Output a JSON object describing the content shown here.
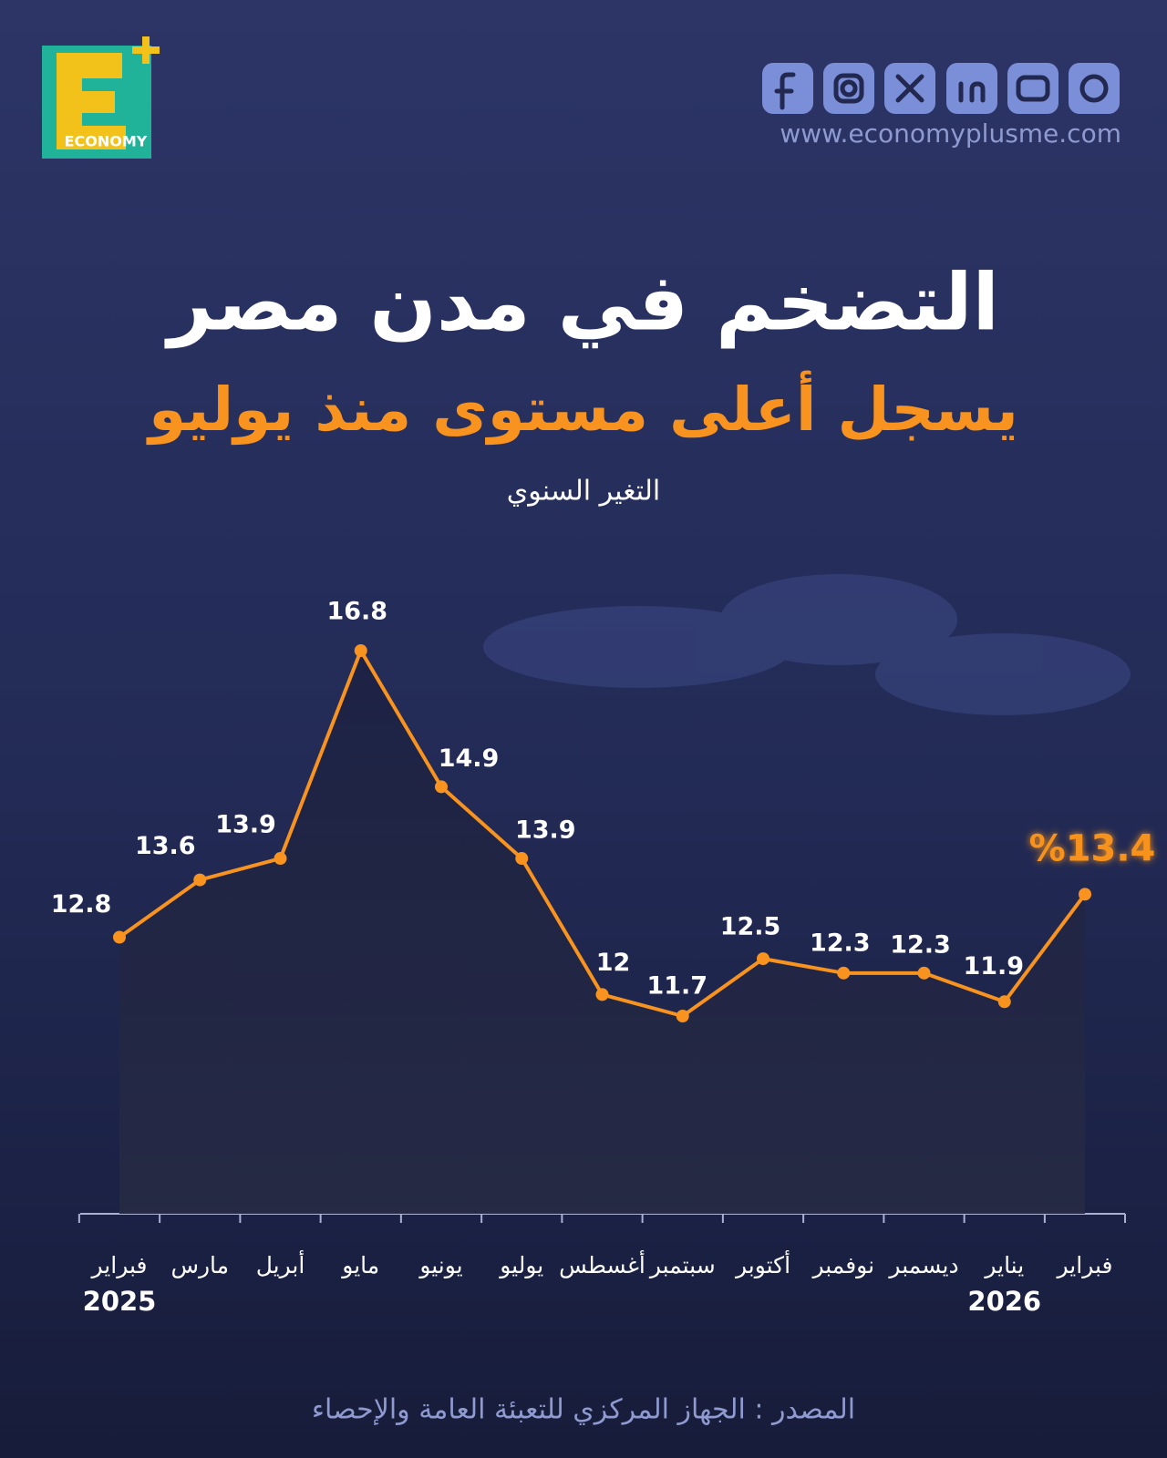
{
  "header": {
    "logo_text": "ECONOMY",
    "website": "www.economyplusme.com"
  },
  "chart_data": {
    "type": "line",
    "title": "التضخم في مدن مصر",
    "subtitle": "يسجل أعلى مستوى منذ يوليو",
    "y_label": "التغير السنوي",
    "categories": [
      "فبراير",
      "مارس",
      "أبريل",
      "مايو",
      "يونيو",
      "يوليو",
      "أغسطس",
      "سبتمبر",
      "أكتوبر",
      "نوفمبر",
      "ديسمبر",
      "يناير",
      "فبراير"
    ],
    "category_years": [
      "2025",
      null,
      null,
      null,
      null,
      null,
      null,
      null,
      null,
      null,
      null,
      "2026",
      null
    ],
    "series": [
      {
        "name": "التغير السنوي",
        "color": "#f7931e",
        "values": [
          12.8,
          13.6,
          13.9,
          16.8,
          14.9,
          13.9,
          12,
          11.7,
          12.5,
          12.3,
          12.3,
          11.9,
          13.4
        ],
        "value_labels": [
          "12.8",
          "13.6",
          "13.9",
          "16.8",
          "14.9",
          "13.9",
          "12",
          "11.7",
          "12.5",
          "12.3",
          "12.3",
          "11.9",
          "%13.4"
        ]
      }
    ]
  },
  "footer": {
    "source": "المصدر : الجهاز المركزي للتعبئة العامة والإحصاء"
  }
}
